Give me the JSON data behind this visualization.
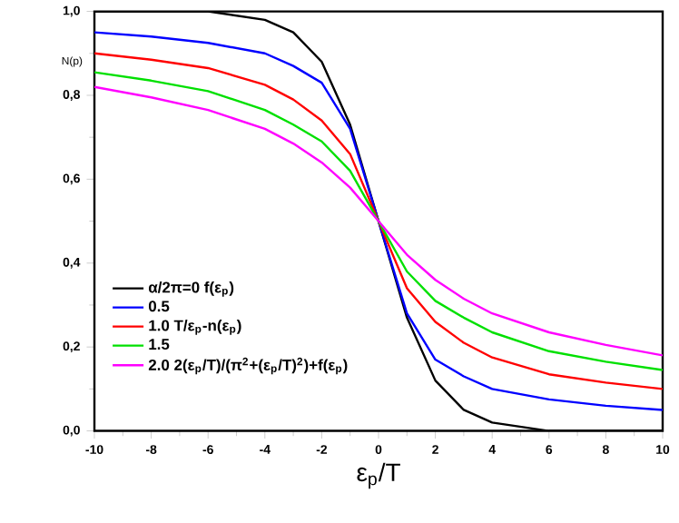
{
  "chart_data": {
    "type": "line",
    "xlabel": "ε$_{p}$/T",
    "ylabel": "N(p)",
    "x": [
      -10,
      -8,
      -6,
      -4,
      -3,
      -2,
      -1,
      0,
      1,
      2,
      3,
      4,
      6,
      8,
      10
    ],
    "series": [
      {
        "name": "α/2π=0  f(ε$_{p}$)",
        "color": "#000000",
        "values": [
          1.0,
          1.0,
          1.0,
          0.98,
          0.95,
          0.88,
          0.73,
          0.5,
          0.27,
          0.12,
          0.05,
          0.02,
          0.0,
          0.0,
          0.0
        ]
      },
      {
        "name": "0.5",
        "color": "#0000ff",
        "values": [
          0.95,
          0.94,
          0.925,
          0.9,
          0.87,
          0.83,
          0.72,
          0.5,
          0.28,
          0.17,
          0.13,
          0.1,
          0.075,
          0.06,
          0.05
        ]
      },
      {
        "name": "1.0  T/ε$_{p}$-n(ε$_{p}$)",
        "color": "#ff0000",
        "values": [
          0.9,
          0.885,
          0.865,
          0.825,
          0.79,
          0.74,
          0.66,
          0.5,
          0.34,
          0.26,
          0.21,
          0.175,
          0.135,
          0.115,
          0.1
        ]
      },
      {
        "name": "1.5",
        "color": "#00e000",
        "values": [
          0.855,
          0.835,
          0.81,
          0.765,
          0.73,
          0.69,
          0.62,
          0.5,
          0.38,
          0.31,
          0.27,
          0.235,
          0.19,
          0.165,
          0.145
        ]
      },
      {
        "name": "2.0  2(ε$_{p}$/T)/(π$^{2}$+(ε$_{p}$/T)$^{2}$)+f(ε$_{p}$)",
        "color": "#ff00ff",
        "values": [
          0.82,
          0.795,
          0.765,
          0.72,
          0.685,
          0.64,
          0.58,
          0.5,
          0.42,
          0.36,
          0.315,
          0.28,
          0.235,
          0.205,
          0.18
        ]
      }
    ],
    "xlim": [
      -10,
      10
    ],
    "ylim": [
      0,
      1
    ],
    "xticks": [
      -10,
      -8,
      -6,
      -4,
      -2,
      0,
      2,
      4,
      6,
      8,
      10
    ],
    "yticks": [
      {
        "value": 0,
        "label": "0,0"
      },
      {
        "value": 0.2,
        "label": "0,2"
      },
      {
        "value": 0.4,
        "label": "0,4"
      },
      {
        "value": 0.6,
        "label": "0,6"
      },
      {
        "value": 0.8,
        "label": "0,8"
      },
      {
        "value": 1,
        "label": "1,0"
      }
    ],
    "legend": "left",
    "marker": "none",
    "line_style": "solid",
    "grid": false
  }
}
